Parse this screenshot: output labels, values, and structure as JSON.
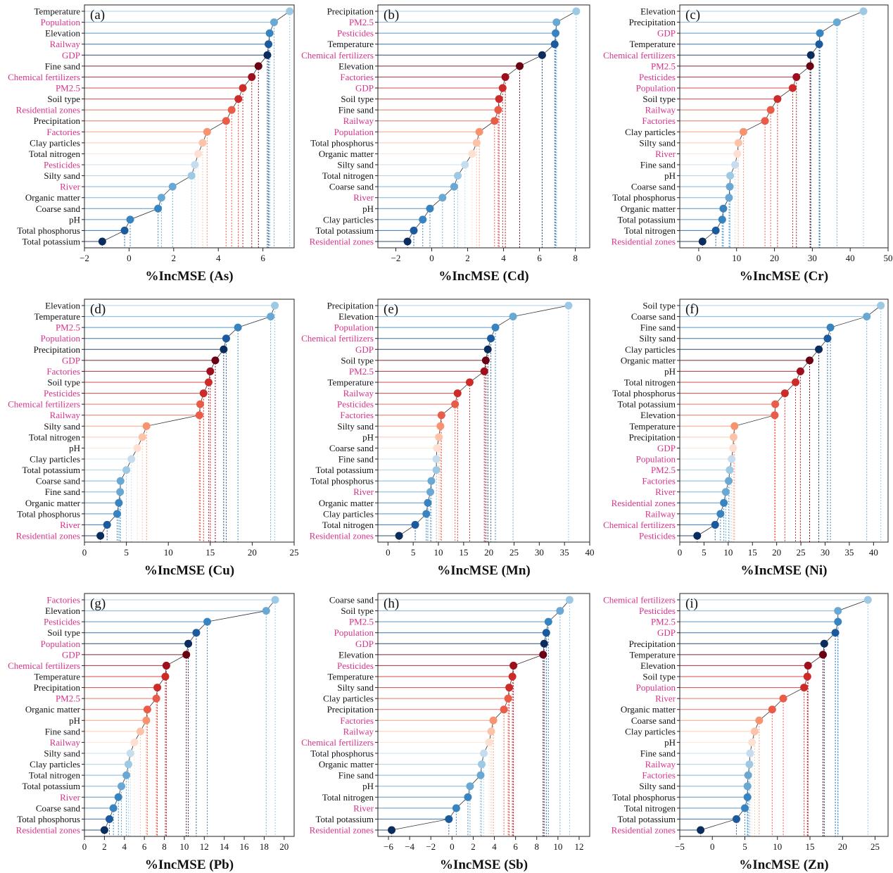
{
  "colors": {
    "anthropogenic_label": "#d6338a",
    "natural_label": "#111111",
    "blues": [
      "#0b2d5e",
      "#1c5a9e",
      "#3884c0",
      "#6aa8d4",
      "#9ec9e5",
      "#c6dcef"
    ],
    "reds": [
      "#6b0012",
      "#9e0e1c",
      "#cc2b29",
      "#ea5b48",
      "#f7936f",
      "#fcc3a8",
      "#fde0d2"
    ]
  },
  "chart_data": [
    {
      "type": "scatter",
      "panel": "(a)",
      "xlabel": "%IncMSE (As)",
      "xlim": [
        -2,
        7.4
      ],
      "xticks": [
        -2,
        0,
        2,
        4,
        6
      ],
      "categories": [
        "Temperature",
        "Population",
        "Elevation",
        "Railway",
        "GDP",
        "Fine sand",
        "Chemical fertilizers",
        "PM2.5",
        "Soil type",
        "Residential zones",
        "Precipitation",
        "Factories",
        "Clay particles",
        "Total nitrogen",
        "Pesticides",
        "Silty sand",
        "River",
        "Organic matter",
        "Coarse sand",
        "pH",
        "Total phosphorus",
        "Total potassium"
      ],
      "values": [
        7.2,
        6.5,
        6.3,
        6.25,
        6.2,
        5.8,
        5.5,
        5.1,
        4.9,
        4.6,
        4.35,
        3.5,
        3.3,
        3.1,
        2.95,
        2.8,
        1.95,
        1.45,
        1.3,
        0.05,
        -0.2,
        -1.2
      ],
      "anthropogenic": [
        "Population",
        "Railway",
        "GDP",
        "Chemical fertilizers",
        "PM2.5",
        "Residential zones",
        "Factories",
        "Pesticides",
        "River"
      ]
    },
    {
      "type": "scatter",
      "panel": "(b)",
      "xlabel": "%IncMSE (Cd)",
      "xlim": [
        -3,
        8.8
      ],
      "xticks": [
        -2,
        0,
        2,
        4,
        6,
        8
      ],
      "categories": [
        "Precipitation",
        "PM2.5",
        "Pesticides",
        "Temperature",
        "Chemical fertilizers",
        "Elevation",
        "Factories",
        "GDP",
        "Soil type",
        "Fine sand",
        "Railway",
        "Population",
        "Total phosphorus",
        "Organic matter",
        "Silty sand",
        "Total nitrogen",
        "Coarse sand",
        "River",
        "pH",
        "Clay particles",
        "Total potassium",
        "Residential zones"
      ],
      "values": [
        8.05,
        6.95,
        6.9,
        6.85,
        6.15,
        4.9,
        4.1,
        3.95,
        3.75,
        3.7,
        3.5,
        2.65,
        2.5,
        2.25,
        1.85,
        1.45,
        1.25,
        0.6,
        -0.1,
        -0.5,
        -1.0,
        -1.35
      ],
      "anthropogenic": [
        "PM2.5",
        "Pesticides",
        "Chemical fertilizers",
        "Factories",
        "GDP",
        "Railway",
        "Population",
        "River",
        "Residential zones"
      ]
    },
    {
      "type": "scatter",
      "panel": "(c)",
      "xlabel": "%IncMSE (Cr)",
      "xlim": [
        -5,
        50
      ],
      "xticks": [
        0,
        10,
        20,
        30,
        40,
        50
      ],
      "categories": [
        "Elevation",
        "Precipitation",
        "GDP",
        "Temperature",
        "Chemical fertilizers",
        "PM2.5",
        "Pesticides",
        "Population",
        "Soil type",
        "Railway",
        "Factories",
        "Clay particles",
        "Silty sand",
        "River",
        "Fine sand",
        "pH",
        "Coarse sand",
        "Total phosphorus",
        "Organic matter",
        "Total potassium",
        "Total nitrogen",
        "Residential zones"
      ],
      "values": [
        43.5,
        36.5,
        32.0,
        31.8,
        29.6,
        29.4,
        25.8,
        24.8,
        20.8,
        19.0,
        17.5,
        11.8,
        10.5,
        10.2,
        9.6,
        8.3,
        8.2,
        8.0,
        6.5,
        6.2,
        4.5,
        1.0
      ],
      "anthropogenic": [
        "GDP",
        "Chemical fertilizers",
        "PM2.5",
        "Pesticides",
        "Population",
        "Railway",
        "Factories",
        "River",
        "Residential zones"
      ]
    },
    {
      "type": "scatter",
      "panel": "(d)",
      "xlabel": "%IncMSE (Cu)",
      "xlim": [
        0,
        25
      ],
      "xticks": [
        0,
        5,
        10,
        15,
        20,
        25
      ],
      "categories": [
        "Elevation",
        "Temperature",
        "PM2.5",
        "Population",
        "Precipitation",
        "GDP",
        "Factories",
        "Soil type",
        "Pesticides",
        "Chemical fertilizers",
        "Railway",
        "Silty sand",
        "Total nitrogen",
        "pH",
        "Clay particles",
        "Total potassium",
        "Coarse sand",
        "Fine sand",
        "Organic matter",
        "Total phosphorus",
        "River",
        "Residential zones"
      ],
      "values": [
        22.7,
        22.2,
        18.3,
        16.9,
        16.6,
        15.6,
        15.0,
        14.8,
        14.2,
        13.8,
        13.7,
        7.4,
        6.9,
        6.3,
        5.6,
        5.0,
        4.3,
        4.25,
        4.1,
        3.9,
        2.7,
        1.9
      ],
      "anthropogenic": [
        "PM2.5",
        "Population",
        "GDP",
        "Factories",
        "Pesticides",
        "Chemical fertilizers",
        "Railway",
        "River",
        "Residential zones"
      ]
    },
    {
      "type": "scatter",
      "panel": "(e)",
      "xlabel": "%IncMSE (Mn)",
      "xlim": [
        -2,
        40
      ],
      "xticks": [
        0,
        5,
        10,
        15,
        20,
        25,
        30,
        35,
        40
      ],
      "categories": [
        "Precipitation",
        "Elevation",
        "Population",
        "Chemical fertilizers",
        "GDP",
        "Soil type",
        "PM2.5",
        "Temperature",
        "Railway",
        "Pesticides",
        "Factories",
        "Silty sand",
        "pH",
        "Coarse sand",
        "Fine sand",
        "Total potassium",
        "Total phosphorus",
        "River",
        "Organic matter",
        "Clay particles",
        "Total nitrogen",
        "Residential zones"
      ],
      "values": [
        35.8,
        24.8,
        21.3,
        20.4,
        19.8,
        19.4,
        19.1,
        16.2,
        13.8,
        13.3,
        10.6,
        10.4,
        10.1,
        9.7,
        9.6,
        9.6,
        8.6,
        8.4,
        7.9,
        7.6,
        5.4,
        2.2
      ],
      "anthropogenic": [
        "Population",
        "Chemical fertilizers",
        "GDP",
        "PM2.5",
        "Railway",
        "Pesticides",
        "Factories",
        "River",
        "Residential zones"
      ]
    },
    {
      "type": "scatter",
      "panel": "(f)",
      "xlabel": "%IncMSE (Ni)",
      "xlim": [
        0,
        43
      ],
      "xticks": [
        0,
        5,
        10,
        15,
        20,
        25,
        30,
        35,
        40
      ],
      "categories": [
        "Soil type",
        "Coarse sand",
        "Fine sand",
        "Silty sand",
        "Clay particles",
        "Organic matter",
        "pH",
        "Total nitrogen",
        "Total phosphorus",
        "Total potassium",
        "Elevation",
        "Temperature",
        "Precipitation",
        "GDP",
        "Population",
        "PM2.5",
        "Factories",
        "River",
        "Residential zones",
        "Railway",
        "Chemical fertilizers",
        "Pesticides"
      ],
      "values": [
        41.5,
        38.6,
        31.1,
        30.5,
        28.7,
        26.8,
        24.9,
        23.9,
        21.7,
        19.7,
        19.6,
        11.3,
        11.1,
        11.0,
        10.7,
        10.3,
        10.1,
        9.5,
        9.1,
        8.4,
        7.3,
        3.6
      ],
      "anthropogenic": [
        "GDP",
        "Population",
        "PM2.5",
        "Factories",
        "River",
        "Residential zones",
        "Railway",
        "Chemical fertilizers",
        "Pesticides"
      ]
    },
    {
      "type": "scatter",
      "panel": "(g)",
      "xlabel": "%IncMSE (Pb)",
      "xlim": [
        0,
        21
      ],
      "xticks": [
        0,
        2,
        4,
        6,
        8,
        10,
        12,
        14,
        16,
        18,
        20
      ],
      "categories": [
        "Factories",
        "Elevation",
        "Pesticides",
        "Soil type",
        "Population",
        "GDP",
        "Chemical fertilizers",
        "Temperature",
        "Precipitation",
        "PM2.5",
        "Organic matter",
        "pH",
        "Fine sand",
        "Railway",
        "Silty sand",
        "Clay particles",
        "Total nitrogen",
        "Total potassium",
        "River",
        "Coarse sand",
        "Total phosphorus",
        "Residential zones"
      ],
      "values": [
        19.1,
        18.2,
        12.3,
        11.2,
        10.4,
        10.2,
        8.2,
        8.1,
        7.3,
        7.2,
        6.3,
        6.2,
        5.6,
        5.0,
        4.6,
        4.4,
        4.2,
        3.7,
        3.4,
        2.9,
        2.5,
        2.0
      ],
      "anthropogenic": [
        "Factories",
        "Pesticides",
        "Population",
        "GDP",
        "Chemical fertilizers",
        "PM2.5",
        "Railway",
        "River",
        "Residential zones"
      ]
    },
    {
      "type": "scatter",
      "panel": "(h)",
      "xlabel": "%IncMSE (Sb)",
      "xlim": [
        -7,
        13
      ],
      "xticks": [
        -6,
        -4,
        -2,
        0,
        2,
        4,
        6,
        8,
        10,
        12
      ],
      "categories": [
        "Coarse sand",
        "Soil type",
        "PM2.5",
        "Population",
        "GDP",
        "Elevation",
        "Pesticides",
        "Temperature",
        "Silty sand",
        "Clay particles",
        "Precipitation",
        "Factories",
        "Railway",
        "Chemical fertilizers",
        "Total phosphorus",
        "Organic matter",
        "Fine sand",
        "pH",
        "Total nitrogen",
        "River",
        "Total potassium",
        "Residential zones"
      ],
      "values": [
        11.1,
        10.2,
        9.1,
        8.9,
        8.7,
        8.6,
        5.8,
        5.7,
        5.4,
        5.3,
        4.9,
        3.9,
        3.7,
        3.5,
        3.0,
        2.8,
        2.7,
        1.7,
        1.5,
        0.4,
        -0.3,
        -5.7
      ],
      "anthropogenic": [
        "PM2.5",
        "Population",
        "GDP",
        "Pesticides",
        "Factories",
        "Railway",
        "Chemical fertilizers",
        "River",
        "Residential zones"
      ]
    },
    {
      "type": "scatter",
      "panel": "(i)",
      "xlabel": "%IncMSE (Zn)",
      "xlim": [
        -5,
        27
      ],
      "xticks": [
        -5,
        0,
        5,
        10,
        15,
        20,
        25
      ],
      "categories": [
        "Chemical fertilizers",
        "Pesticides",
        "PM2.5",
        "GDP",
        "Precipitation",
        "Temperature",
        "Elevation",
        "Soil type",
        "Population",
        "River",
        "Organic matter",
        "Coarse sand",
        "Clay particles",
        "pH",
        "Fine sand",
        "Railway",
        "Factories",
        "Silty sand",
        "Total phosphorus",
        "Total nitrogen",
        "Total potassium",
        "Residential zones"
      ],
      "values": [
        23.9,
        19.3,
        19.3,
        18.9,
        17.2,
        17.0,
        14.7,
        14.6,
        14.1,
        10.9,
        9.2,
        7.2,
        6.5,
        6.1,
        5.8,
        5.7,
        5.5,
        5.4,
        5.4,
        5.0,
        3.7,
        -1.8
      ],
      "anthropogenic": [
        "Chemical fertilizers",
        "Pesticides",
        "PM2.5",
        "GDP",
        "Population",
        "River",
        "Railway",
        "Factories",
        "Residential zones"
      ]
    }
  ]
}
